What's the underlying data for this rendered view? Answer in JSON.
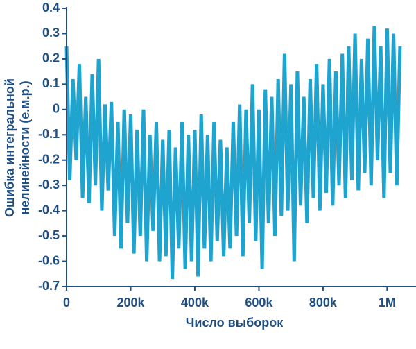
{
  "chart_data": {
    "type": "line",
    "xlabel": "Число выборок",
    "ylabel": [
      "Ошибка интегральной",
      "нелинейности (е.м.р.)"
    ],
    "color": "#1fa3cf",
    "x": [
      0,
      10000,
      20000,
      30000,
      40000,
      50000,
      60000,
      70000,
      80000,
      90000,
      100000,
      110000,
      120000,
      130000,
      140000,
      150000,
      160000,
      170000,
      180000,
      190000,
      200000,
      210000,
      220000,
      230000,
      240000,
      250000,
      260000,
      270000,
      280000,
      290000,
      300000,
      310000,
      320000,
      330000,
      340000,
      350000,
      360000,
      370000,
      380000,
      390000,
      400000,
      410000,
      420000,
      430000,
      440000,
      450000,
      460000,
      470000,
      480000,
      490000,
      500000,
      510000,
      520000,
      530000,
      540000,
      550000,
      560000,
      570000,
      580000,
      590000,
      600000,
      610000,
      620000,
      630000,
      640000,
      650000,
      660000,
      670000,
      680000,
      690000,
      700000,
      710000,
      720000,
      730000,
      740000,
      750000,
      760000,
      770000,
      780000,
      790000,
      800000,
      810000,
      820000,
      830000,
      840000,
      850000,
      860000,
      870000,
      880000,
      890000,
      900000,
      910000,
      920000,
      930000,
      940000,
      950000,
      960000,
      970000,
      980000,
      990000,
      1000000,
      1010000,
      1020000,
      1030000,
      1040000
    ],
    "values": [
      0.25,
      -0.28,
      0.12,
      -0.2,
      0.18,
      -0.35,
      0.05,
      -0.37,
      0.14,
      -0.3,
      0.2,
      -0.4,
      0.02,
      -0.32,
      0.03,
      -0.5,
      -0.05,
      -0.55,
      0.0,
      -0.45,
      -0.02,
      -0.57,
      -0.08,
      -0.5,
      0.0,
      -0.6,
      -0.1,
      -0.48,
      -0.05,
      -0.6,
      -0.12,
      -0.58,
      -0.08,
      -0.67,
      -0.15,
      -0.55,
      -0.05,
      -0.63,
      -0.1,
      -0.6,
      -0.08,
      -0.66,
      -0.02,
      -0.55,
      -0.1,
      -0.6,
      -0.05,
      -0.52,
      -0.12,
      -0.58,
      -0.15,
      -0.55,
      -0.05,
      -0.5,
      0.02,
      -0.58,
      0.0,
      -0.45,
      0.1,
      -0.52,
      0.0,
      -0.63,
      0.08,
      -0.45,
      0.05,
      -0.5,
      0.12,
      -0.42,
      0.22,
      -0.4,
      0.1,
      -0.6,
      0.15,
      -0.38,
      0.05,
      -0.45,
      0.12,
      -0.35,
      0.18,
      -0.4,
      0.1,
      -0.33,
      0.2,
      -0.38,
      0.15,
      -0.3,
      0.22,
      -0.35,
      0.25,
      -0.28,
      0.3,
      -0.32,
      0.2,
      -0.25,
      0.28,
      -0.3,
      0.33,
      -0.2,
      0.25,
      -0.35,
      0.32,
      -0.25,
      0.3,
      -0.3,
      0.25
    ],
    "xlim": [
      0,
      1090000
    ],
    "xticks": [
      0,
      {
        "value": 200000,
        "label": "200k"
      },
      {
        "value": 400000,
        "label": "400k"
      },
      {
        "value": 600000,
        "label": "600k"
      },
      {
        "value": 800000,
        "label": "800k"
      },
      {
        "value": 1000000,
        "label": "1M"
      }
    ],
    "ylim": [
      -0.7,
      0.4
    ],
    "yticks": [
      0.4,
      0.3,
      0.2,
      0.1,
      0,
      -0.1,
      -0.2,
      -0.3,
      -0.4,
      -0.5,
      -0.6,
      -0.7
    ]
  }
}
